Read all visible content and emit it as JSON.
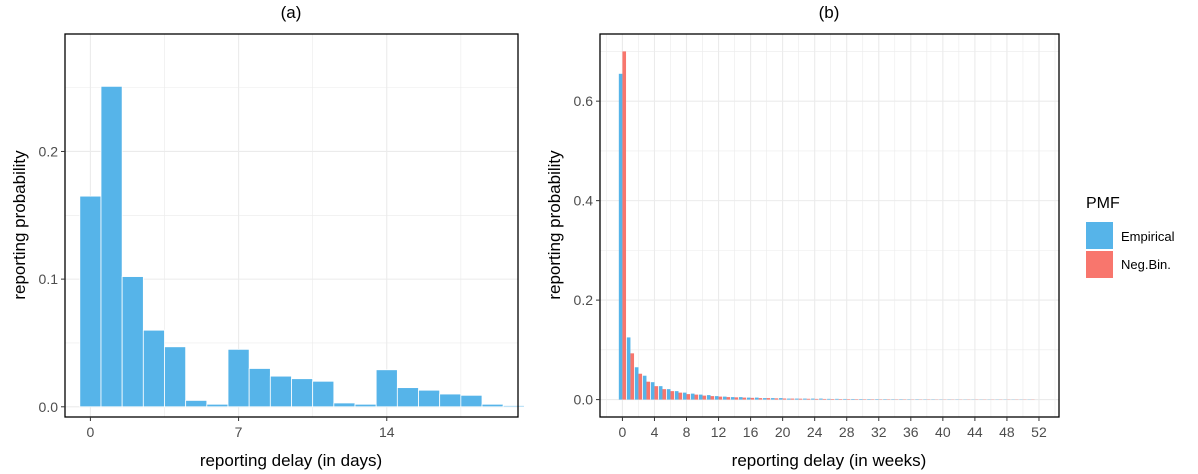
{
  "chart_data": [
    {
      "type": "bar",
      "title": "(a)",
      "xlabel": "reporting delay (in days)",
      "ylabel": "reporting probability",
      "x_ticks": [
        "0",
        "7",
        "14"
      ],
      "y_ticks": [
        "0.0",
        "0.1",
        "0.2"
      ],
      "xlim": [
        -1.2,
        20.2
      ],
      "ylim": [
        -0.008,
        0.292
      ],
      "grid": true,
      "series": [
        {
          "name": "Empirical",
          "color": "#56B4E9",
          "x": [
            0,
            1,
            2,
            3,
            4,
            5,
            6,
            7,
            8,
            9,
            10,
            11,
            12,
            13,
            14,
            15,
            16,
            17,
            18,
            19,
            20
          ],
          "values": [
            0.165,
            0.251,
            0.102,
            0.06,
            0.047,
            0.005,
            0.002,
            0.045,
            0.03,
            0.024,
            0.022,
            0.02,
            0.003,
            0.002,
            0.029,
            0.015,
            0.013,
            0.01,
            0.009,
            0.002,
            0.001
          ]
        }
      ]
    },
    {
      "type": "bar",
      "title": "(b)",
      "xlabel": "reporting delay (in weeks)",
      "ylabel": "reporting probability",
      "x_ticks": [
        "0",
        "4",
        "8",
        "12",
        "16",
        "20",
        "24",
        "28",
        "32",
        "36",
        "40",
        "44",
        "48",
        "52"
      ],
      "y_ticks": [
        "0.0",
        "0.2",
        "0.4",
        "0.6"
      ],
      "xlim": [
        -2.8,
        54.5
      ],
      "ylim": [
        -0.035,
        0.735
      ],
      "grid": true,
      "x": [
        0,
        1,
        2,
        3,
        4,
        5,
        6,
        7,
        8,
        9,
        10,
        11,
        12,
        13,
        14,
        15,
        16,
        17,
        18,
        19,
        20,
        21,
        22,
        23,
        24,
        25,
        26,
        27,
        28,
        29,
        30,
        31,
        32,
        33,
        34,
        35,
        36,
        37,
        38,
        39,
        40,
        41,
        42,
        43,
        44,
        45,
        46,
        47,
        48,
        49,
        50,
        51
      ],
      "series": [
        {
          "name": "Empirical",
          "color": "#56B4E9",
          "values": [
            0.655,
            0.125,
            0.065,
            0.048,
            0.035,
            0.027,
            0.021,
            0.017,
            0.014,
            0.012,
            0.01,
            0.009,
            0.007,
            0.006,
            0.005,
            0.005,
            0.004,
            0.004,
            0.003,
            0.003,
            0.003,
            0.002,
            0.002,
            0.002,
            0.002,
            0.002,
            0.0015,
            0.0015,
            0.0013,
            0.0012,
            0.0011,
            0.001,
            0.001,
            0.0009,
            0.0008,
            0.0008,
            0.0007,
            0.0007,
            0.0006,
            0.0006,
            0.0005,
            0.0005,
            0.0005,
            0.0004,
            0.0004,
            0.0004,
            0.0003,
            0.0003,
            0.0003,
            0.0003,
            0.0002,
            0.0002
          ]
        },
        {
          "name": "Neg.Bin.",
          "color": "#F8766D",
          "values": [
            0.7,
            0.093,
            0.052,
            0.036,
            0.027,
            0.021,
            0.017,
            0.014,
            0.011,
            0.01,
            0.008,
            0.007,
            0.006,
            0.005,
            0.0045,
            0.004,
            0.0035,
            0.003,
            0.003,
            0.0025,
            0.0022,
            0.002,
            0.0018,
            0.0016,
            0.0014,
            0.0013,
            0.0012,
            0.0011,
            0.001,
            0.0009,
            0.0008,
            0.0008,
            0.0007,
            0.0007,
            0.0006,
            0.0006,
            0.0005,
            0.0005,
            0.0005,
            0.0004,
            0.0004,
            0.0004,
            0.0003,
            0.0003,
            0.0003,
            0.0003,
            0.0002,
            0.0002,
            0.0002,
            0.0002,
            0.0002,
            0.0002
          ]
        }
      ]
    }
  ],
  "legend": {
    "title": "PMF",
    "items": [
      {
        "label": "Empirical",
        "color": "#56B4E9"
      },
      {
        "label": "Neg.Bin.",
        "color": "#F8766D"
      }
    ]
  }
}
